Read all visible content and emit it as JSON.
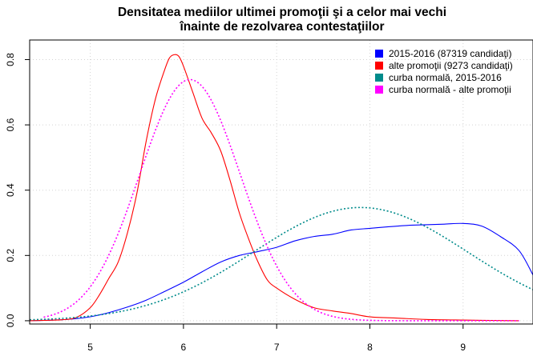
{
  "chart_data": {
    "type": "line",
    "title_lines": [
      "Densitatea mediilor ultimei promoţii şi a celor mai vechi",
      "înainte de rezolvarea contestaţiilor"
    ],
    "xlabel": "",
    "ylabel": "",
    "xlim": [
      4.35,
      9.75
    ],
    "ylim": [
      -0.01,
      0.86
    ],
    "x_ticks": [
      5,
      6,
      7,
      8,
      9
    ],
    "y_ticks": [
      0.0,
      0.2,
      0.4,
      0.6,
      0.8
    ],
    "x_tick_labels": [
      "5",
      "6",
      "7",
      "8",
      "9"
    ],
    "y_tick_labels": [
      "0.0",
      "0.2",
      "0.4",
      "0.6",
      "0.8"
    ],
    "grid": true,
    "legend_position": "top-right",
    "series": [
      {
        "name": "2015-2016 (87319 candidaţi)",
        "color": "#0000ff",
        "style": "solid",
        "x": [
          4.35,
          4.6,
          4.8,
          5.0,
          5.2,
          5.4,
          5.6,
          5.8,
          6.0,
          6.2,
          6.4,
          6.6,
          6.8,
          7.0,
          7.2,
          7.4,
          7.6,
          7.8,
          8.0,
          8.2,
          8.4,
          8.6,
          8.8,
          9.0,
          9.2,
          9.4,
          9.6,
          9.75
        ],
        "y": [
          0.0,
          0.002,
          0.005,
          0.012,
          0.025,
          0.042,
          0.063,
          0.09,
          0.118,
          0.15,
          0.18,
          0.2,
          0.212,
          0.225,
          0.245,
          0.258,
          0.265,
          0.278,
          0.283,
          0.288,
          0.292,
          0.294,
          0.296,
          0.298,
          0.29,
          0.258,
          0.215,
          0.14
        ]
      },
      {
        "name": "alte promoţii (9273 candidaţi)",
        "color": "#ff0000",
        "style": "solid",
        "x": [
          4.35,
          4.5,
          4.7,
          4.85,
          5.0,
          5.1,
          5.2,
          5.3,
          5.4,
          5.5,
          5.6,
          5.7,
          5.8,
          5.85,
          5.9,
          5.95,
          6.0,
          6.1,
          6.2,
          6.3,
          6.4,
          6.5,
          6.6,
          6.7,
          6.8,
          6.9,
          7.0,
          7.2,
          7.4,
          7.6,
          7.8,
          8.0,
          8.3,
          8.6,
          9.0,
          9.3,
          9.6
        ],
        "y": [
          0.0,
          0.001,
          0.003,
          0.01,
          0.04,
          0.08,
          0.13,
          0.18,
          0.27,
          0.39,
          0.55,
          0.68,
          0.77,
          0.805,
          0.815,
          0.81,
          0.78,
          0.7,
          0.62,
          0.575,
          0.52,
          0.43,
          0.33,
          0.25,
          0.18,
          0.125,
          0.1,
          0.065,
          0.04,
          0.03,
          0.022,
          0.012,
          0.008,
          0.004,
          0.002,
          0.001,
          0.0
        ]
      },
      {
        "name": "curba normală, 2015-2016",
        "color": "#008b8b",
        "style": "dotted",
        "mean": 7.9,
        "sd": 1.15,
        "x_range": [
          4.35,
          9.75
        ]
      },
      {
        "name": "curba normală - alte promoţii",
        "color": "#ff00ff",
        "style": "dotted",
        "mean": 6.07,
        "sd": 0.54,
        "x_range": [
          4.5,
          9.6
        ]
      }
    ]
  }
}
